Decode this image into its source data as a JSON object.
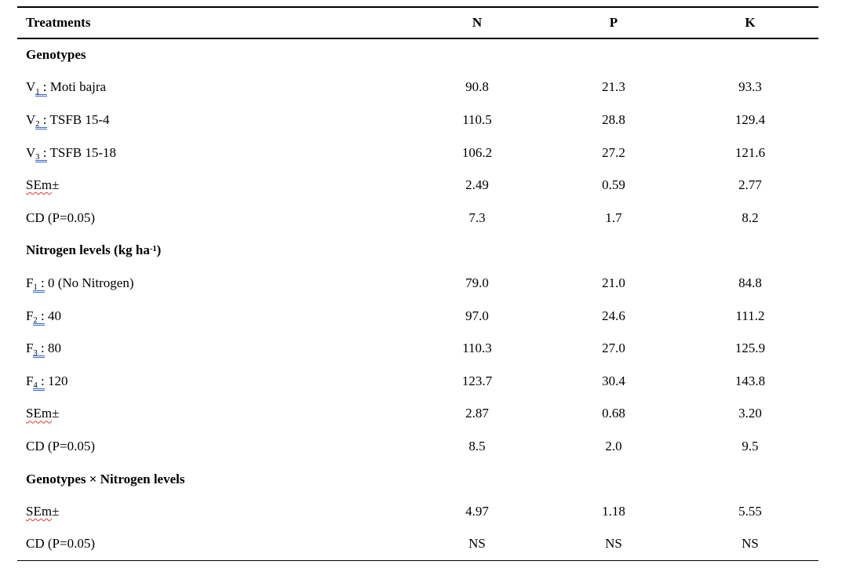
{
  "table": {
    "header": {
      "treatments": "Treatments",
      "n": "N",
      "p": "P",
      "k": "K"
    },
    "rows": [
      {
        "type": "section",
        "label": "Genotypes",
        "values": [
          "",
          "",
          ""
        ]
      },
      {
        "type": "treatment",
        "prefix": "V",
        "sub": "1",
        "sub_tail": " :",
        "rest": " Moti bajra",
        "values": [
          "90.8",
          "21.3",
          "93.3"
        ]
      },
      {
        "type": "treatment",
        "prefix": "V",
        "sub": "2",
        "sub_tail": " :",
        "rest": " TSFB 15-4",
        "values": [
          "110.5",
          "28.8",
          "129.4"
        ]
      },
      {
        "type": "treatment",
        "prefix": "V",
        "sub": "3",
        "sub_tail": " :",
        "rest": " TSFB 15-18",
        "values": [
          "106.2",
          "27.2",
          "121.6"
        ]
      },
      {
        "type": "sem",
        "misspelled": "SEm",
        "tail": "±",
        "values": [
          "2.49",
          "0.59",
          "2.77"
        ]
      },
      {
        "type": "cd",
        "label": "CD (P=0.05)",
        "values": [
          "7.3",
          "1.7",
          "8.2"
        ]
      },
      {
        "type": "section",
        "label": "Nitrogen levels (kg ha",
        "sup": "-1",
        "label_tail": ")",
        "values": [
          "",
          "",
          ""
        ]
      },
      {
        "type": "treatment",
        "prefix": "F",
        "sub": "1",
        "sub_tail": " :",
        "rest": " 0 (No Nitrogen)",
        "values": [
          "79.0",
          "21.0",
          "84.8"
        ]
      },
      {
        "type": "treatment",
        "prefix": "F",
        "sub": "2",
        "sub_tail": " :",
        "rest": " 40",
        "values": [
          "97.0",
          "24.6",
          "111.2"
        ]
      },
      {
        "type": "treatment",
        "prefix": "F",
        "sub": "3",
        "sub_tail": " :",
        "rest": " 80",
        "values": [
          "110.3",
          "27.0",
          "125.9"
        ]
      },
      {
        "type": "treatment",
        "prefix": "F",
        "sub": "4",
        "sub_tail": " :",
        "rest": " 120",
        "values": [
          "123.7",
          "30.4",
          "143.8"
        ]
      },
      {
        "type": "sem",
        "misspelled": "SEm",
        "tail": "±",
        "values": [
          "2.87",
          "0.68",
          "3.20"
        ]
      },
      {
        "type": "cd",
        "label": "CD (P=0.05)",
        "values": [
          "8.5",
          "2.0",
          "9.5"
        ]
      },
      {
        "type": "section",
        "label": "Genotypes × Nitrogen levels",
        "values": [
          "",
          "",
          ""
        ]
      },
      {
        "type": "sem",
        "misspelled": "SEm",
        "tail": "±",
        "values": [
          "4.97",
          "1.18",
          "5.55"
        ]
      },
      {
        "type": "cd",
        "label": "CD (P=0.05)",
        "values": [
          "NS",
          "NS",
          "NS"
        ]
      }
    ],
    "colors": {
      "text": "#000000",
      "border": "#000000",
      "grammar_underline": "#3767c8",
      "spellcheck_underline": "#e0382e"
    }
  }
}
